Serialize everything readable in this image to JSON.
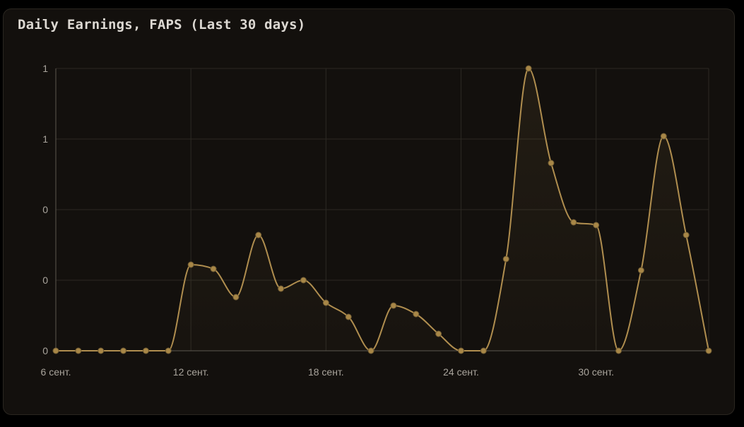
{
  "chart_data": {
    "type": "area",
    "title": "Daily Earnings, FAPS (Last 30 days)",
    "xlabel": "",
    "ylabel": "",
    "grid": true,
    "legend": "none",
    "x_tick_labels": [
      "6 сент.",
      "12 сент.",
      "18 сент.",
      "24 сент.",
      "30 сент."
    ],
    "x_tick_indices": [
      0,
      6,
      12,
      18,
      24
    ],
    "y_tick_labels": [
      "0",
      "0",
      "0",
      "1",
      "1"
    ],
    "ylim": [
      0,
      1
    ],
    "series": [
      {
        "values": [
          0,
          0,
          0,
          0,
          0,
          0,
          0.305,
          0.29,
          0.19,
          0.41,
          0.22,
          0.25,
          0.17,
          0.12,
          0,
          0.16,
          0.13,
          0.06,
          0,
          0,
          0.325,
          1.0,
          0.665,
          0.455,
          0.445,
          0,
          0.285,
          0.76,
          0.41,
          0
        ]
      }
    ],
    "colors": {
      "line": "#b08e4f",
      "point": "#a88747",
      "grid": "#2c2923",
      "axis": "#5c5850"
    }
  }
}
